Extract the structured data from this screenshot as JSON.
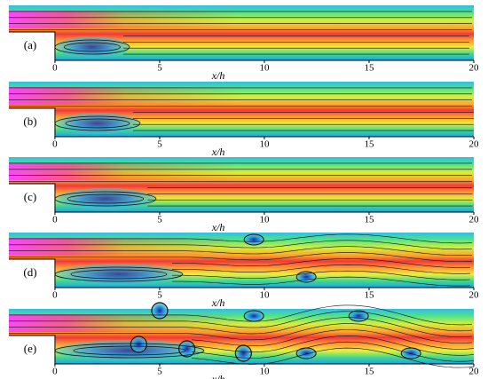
{
  "axis": {
    "xlim": [
      -2.2,
      20
    ],
    "xticks": [
      0,
      5,
      10,
      15,
      20
    ],
    "xlabel": "x/h"
  },
  "panels": [
    {
      "label": "(a)"
    },
    {
      "label": "(b)"
    },
    {
      "label": "(c)"
    },
    {
      "label": "(d)"
    },
    {
      "label": "(e)"
    }
  ]
}
